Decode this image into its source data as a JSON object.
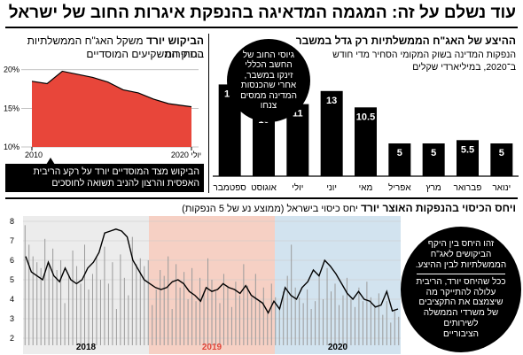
{
  "header": {
    "title": "עוד נשלם על זה: המגמה המדאיגה בהנפקת איגרות החוב של ישראל"
  },
  "issuance": {
    "title": "ההיצע של האג\"ח הממשלתיות רק גדל במשבר",
    "subtitle_line1": "הנפקות המדינה בשוק המקומי הסחיר מדי חודש",
    "subtitle_line2": "ב־2020, במיליארדי שקלים",
    "bubble_lines": [
      "גיוסי החוב של",
      "החשב הכללי",
      "זינקו במשבר,",
      "אחרי שהכנסות",
      "המדינה ממסים",
      "צנחו"
    ]
  },
  "institutional": {
    "title_bold": "הביקוש יורד",
    "title_rest": " משקל האג\"ח הממשלתיות הסחירות",
    "title_line2": "בתיק המשקיעים המוסדיים",
    "start_label": "2010",
    "end_label": "יולי 2020",
    "callout_lines": [
      "הביקוש מצד המוסדיים יורד על רקע הריבית",
      "האפסית והרצון להניב תשואה לחוסכים"
    ]
  },
  "cover": {
    "title_bold": "ויחס הכיסוי בהנפקות האוצר יורד",
    "title_rest": " יחס כיסוי בישראל (ממוצע נע של 5 הנפקות)",
    "callout1_lines": [
      "זהו היחס בין היקף",
      "הביקושים לאג\"ח",
      "הממשלתיות לבין ההיצע."
    ],
    "callout2_lines": [
      "ככל שהיחס יורד, הריבית",
      "עלולה להתייקר מה",
      "שיצמצם את התקציבים",
      "של משרדי הממשלה",
      "לשירותים",
      "הציבוריים"
    ]
  },
  "chart_data": [
    {
      "type": "bar",
      "title": "ההיצע של האג\"ח הממשלתיות רק גדל במשבר",
      "categories": [
        "ינואר",
        "פברואר",
        "מרץ",
        "אפריל",
        "מאי",
        "יוני",
        "יולי",
        "אוגוסט",
        "ספטמבר"
      ],
      "values": [
        5,
        5.5,
        5,
        5,
        10.5,
        13,
        11,
        10,
        14
      ],
      "value_labels": [
        "5",
        "5.5",
        "5",
        "5",
        "10.5",
        "13",
        "11",
        "10",
        "14"
      ],
      "ylim": [
        0,
        15
      ],
      "colors": {
        "bar": "#000000",
        "label": "#ffffff",
        "axis": "#000000"
      }
    },
    {
      "type": "area",
      "title": "הביקוש יורד",
      "x": [
        2010,
        2011,
        2012,
        2013,
        2014,
        2015,
        2016,
        2017,
        2018,
        2019,
        2020.5
      ],
      "values": [
        18.5,
        18.2,
        19.8,
        19.4,
        19.0,
        18.4,
        17.4,
        17.0,
        16.2,
        15.6,
        15.2
      ],
      "y_ticks": [
        10,
        15,
        20
      ],
      "y_tick_labels": [
        "10%",
        "15%",
        "20%"
      ],
      "ylim": [
        10,
        21
      ],
      "grid": true,
      "colors": {
        "fill": "#e8463a",
        "line": "#000000",
        "grid": "#b0b0b0"
      }
    },
    {
      "type": "line",
      "title": "ויחס הכיסוי בהנפקות האוצר יורד",
      "x_tick_labels": [
        "2018",
        "2019",
        "2020"
      ],
      "y_ticks": [
        2,
        3,
        4,
        5,
        6,
        7,
        8
      ],
      "y_tick_labels": [
        "2",
        "3",
        "4",
        "5",
        "6",
        "7",
        "8"
      ],
      "ylim": [
        2,
        8
      ],
      "line": [
        6.2,
        5.4,
        5.2,
        5.0,
        5.9,
        5.2,
        4.9,
        5.6,
        5.0,
        4.8,
        5.0,
        5.6,
        5.9,
        6.4,
        7.4,
        7.5,
        7.6,
        7.5,
        7.2,
        6.0,
        5.5,
        5.0,
        4.8,
        4.6,
        4.5,
        4.6,
        4.9,
        5.0,
        4.8,
        4.4,
        4.2,
        3.9,
        4.6,
        4.4,
        4.5,
        4.8,
        4.6,
        4.5,
        4.3,
        4.7,
        4.2,
        4.0,
        3.8,
        3.3,
        3.9,
        3.5,
        4.6,
        4.2,
        4.0,
        4.6,
        4.9,
        5.5,
        5.2,
        6.0,
        5.7,
        5.3,
        4.8,
        4.3,
        4.0,
        4.4,
        4.0,
        3.9,
        3.6,
        3.7,
        4.4,
        3.4,
        3.5
      ],
      "bars": [
        7.8,
        6.8,
        6.2,
        5.9,
        5.6,
        7.1,
        5.8,
        6.6,
        5.5,
        6.0,
        3.8,
        5.2,
        6.5,
        5.7,
        4.8,
        6.8,
        4.5,
        5.3,
        6.2,
        5.0,
        6.7,
        4.8,
        5.9,
        3.5,
        6.3,
        5.1,
        4.2,
        7.2,
        5.8,
        6.1,
        5.7,
        6.0,
        3.7,
        4.5,
        5.5,
        5.2,
        6.2,
        3.5,
        5.8,
        4.6,
        5.4,
        4.0,
        5.6,
        3.9,
        5.1,
        4.4,
        6.1,
        5.0,
        4.4,
        3.8,
        5.3,
        4.7,
        3.6,
        4.9,
        4.2,
        5.8,
        4.7,
        4.1,
        5.3,
        3.9,
        4.6,
        3.4,
        4.8,
        4.1,
        3.6,
        4.4,
        5.2,
        6.8,
        4.6,
        4.1,
        3.8,
        4.5,
        3.5,
        3.9,
        5.3,
        4.0,
        5.6,
        4.4,
        4.8,
        3.7,
        4.2,
        5.1,
        4.0,
        3.6,
        4.6,
        3.9,
        4.9,
        4.1,
        3.7,
        4.3,
        3.2,
        3.9,
        2.8,
        3.4,
        3.1
      ],
      "periods": [
        {
          "label": "2018",
          "color": "#ececec"
        },
        {
          "label": "2019",
          "color": "#f6d0c4"
        },
        {
          "label": "2020",
          "color": "#d2e3ef"
        }
      ],
      "colors": {
        "line": "#000000",
        "bars": "#9a9a9a",
        "label_2019": "#e0463a"
      }
    }
  ]
}
